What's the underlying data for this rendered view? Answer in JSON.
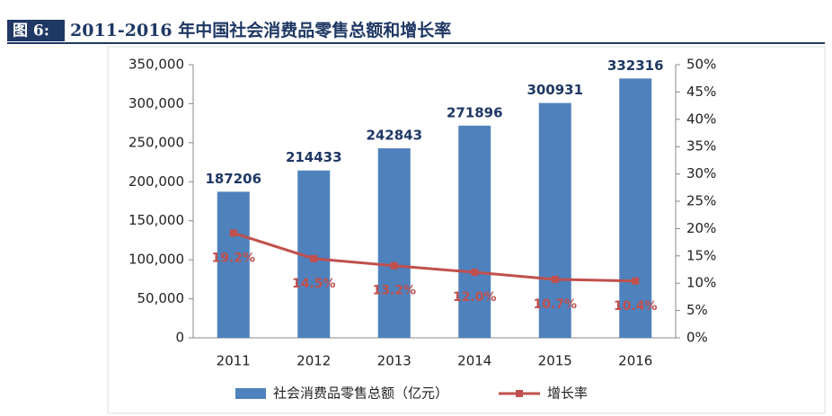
{
  "chart_data": {
    "type": "bar",
    "figure_label": "图 6:",
    "title": "2011-2016 年中国社会消费品零售总额和增长率",
    "categories": [
      "2011",
      "2012",
      "2013",
      "2014",
      "2015",
      "2016"
    ],
    "series": [
      {
        "name": "社会消费品零售总额（亿元）",
        "type": "bar",
        "color": "#4f81bd",
        "values": [
          187206,
          214433,
          242843,
          271896,
          300931,
          332316
        ]
      },
      {
        "name": "增长率",
        "type": "line",
        "axis": "y2",
        "color": "#c0504d",
        "values": [
          19.2,
          14.5,
          13.2,
          12.0,
          10.7,
          10.4
        ],
        "value_labels": [
          "19.2%",
          "14.5%",
          "13.2%",
          "12.0%",
          "10.7%",
          "10.4%"
        ]
      }
    ],
    "ylim": [
      0,
      350000
    ],
    "yticks": [
      0,
      {
        "value": 50000,
        "label": "50,000"
      },
      {
        "value": 100000,
        "label": "100,000"
      },
      {
        "value": 150000,
        "label": "150,000"
      },
      {
        "value": 200000,
        "label": "200,000"
      },
      {
        "value": 250000,
        "label": "250,000"
      },
      {
        "value": 300000,
        "label": "300,000"
      },
      {
        "value": 350000,
        "label": "350,000"
      }
    ],
    "y2lim": [
      0,
      50
    ],
    "y2ticks": [
      {
        "value": 0,
        "label": "0%"
      },
      {
        "value": 5,
        "label": "5%"
      },
      {
        "value": 10,
        "label": "10%"
      },
      {
        "value": 15,
        "label": "15%"
      },
      {
        "value": 20,
        "label": "20%"
      },
      {
        "value": 25,
        "label": "25%"
      },
      {
        "value": 30,
        "label": "30%"
      },
      {
        "value": 35,
        "label": "35%"
      },
      {
        "value": 40,
        "label": "40%"
      },
      {
        "value": 45,
        "label": "45%"
      },
      {
        "value": 50,
        "label": "50%"
      }
    ],
    "grid": false,
    "legend": "bottom"
  }
}
